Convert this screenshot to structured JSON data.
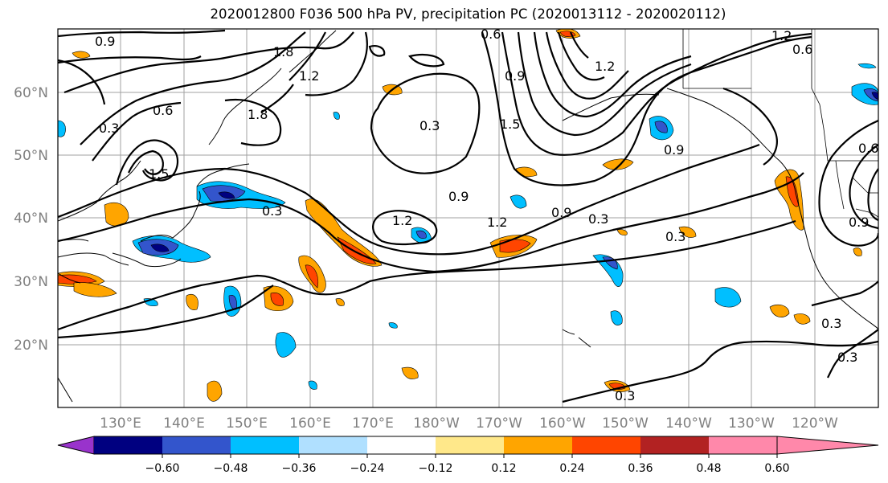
{
  "title": "2020012800 F036 500 hPa PV, precipitation PC (2020013112 - 2020020112)",
  "axes": {
    "lat_labels": [
      "60°N",
      "50°N",
      "40°N",
      "30°N",
      "20°N"
    ],
    "lon_labels": [
      "130°E",
      "140°E",
      "150°E",
      "160°E",
      "170°E",
      "180°W",
      "170°W",
      "160°W",
      "150°W",
      "140°W",
      "130°W",
      "120°W"
    ]
  },
  "contour_labels": [
    "0.9",
    "1.8",
    "1.8",
    "1.2",
    "1.5",
    "0.6",
    "0.3",
    "1.2",
    "0.6",
    "0.6",
    "1.2",
    "0.3",
    "0.9",
    "1.2",
    "0.9",
    "1.2",
    "0.3",
    "0.3",
    "0.9",
    "0.3",
    "0.3",
    "0.6",
    "0.9",
    "0.3",
    "0.3",
    "0.9",
    "1.5"
  ],
  "colorbar": {
    "colors": [
      "#9933cc",
      "#000080",
      "#3355cc",
      "#00bfff",
      "#b0e0ff",
      "#ffffff",
      "#ffe88a",
      "#ffa500",
      "#ff4500",
      "#b22222",
      "#ff88aa"
    ],
    "tick_labels": [
      "−0.60",
      "−0.48",
      "−0.36",
      "−0.24",
      "−0.12",
      "0.12",
      "0.24",
      "0.36",
      "0.48",
      "0.60"
    ]
  },
  "colors": {
    "gridline": "#a0a0a0",
    "ticklabel": "#808080",
    "contour": "#000000"
  }
}
